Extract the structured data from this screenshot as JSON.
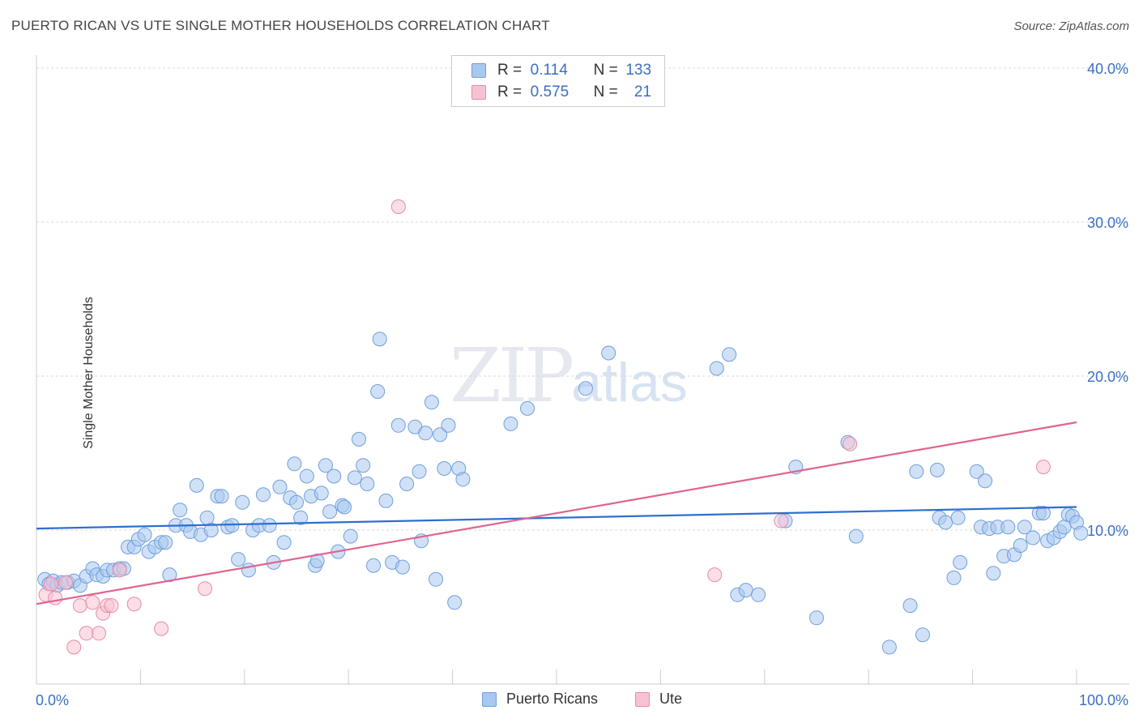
{
  "header": {
    "title": "PUERTO RICAN VS UTE SINGLE MOTHER HOUSEHOLDS CORRELATION CHART",
    "source": "Source: ZipAtlas.com"
  },
  "watermark": {
    "zip": "ZIP",
    "atlas": "atlas"
  },
  "legend": {
    "rows": [
      {
        "r_label": "R =",
        "r_value": "0.114",
        "n_label": "N =",
        "n_value": "133",
        "color": "#a9c8f0",
        "border": "#6f9fdc"
      },
      {
        "r_label": "R =",
        "r_value": "0.575",
        "n_label": "N =",
        "n_value": "21",
        "color": "#f7c3d2",
        "border": "#e98aa6"
      }
    ]
  },
  "bottom_legend": {
    "items": [
      {
        "label": "Puerto Ricans",
        "color": "#a9c8f0",
        "border": "#6f9fdc"
      },
      {
        "label": "Ute",
        "color": "#f7c3d2",
        "border": "#e98aa6"
      }
    ]
  },
  "chart_data": {
    "type": "scatter",
    "title": "PUERTO RICAN VS UTE SINGLE MOTHER HOUSEHOLDS CORRELATION CHART",
    "xlabel": "",
    "ylabel": "Single Mother Households",
    "xlim": [
      0,
      100
    ],
    "ylim": [
      0,
      42
    ],
    "x_tick_labels": [
      "0.0%",
      "100.0%"
    ],
    "y_ticks": [
      10,
      20,
      30,
      40
    ],
    "y_tick_labels": [
      "10.0%",
      "20.0%",
      "30.0%",
      "40.0%"
    ],
    "grid": true,
    "legend_position": "top-center",
    "series": [
      {
        "name": "Puerto Ricans",
        "color": "#6f9fdc",
        "fill": "#a9c8f0",
        "trend": {
          "x": [
            0,
            100
          ],
          "y": [
            10.1,
            11.5
          ]
        },
        "points": [
          [
            0.8,
            6.8
          ],
          [
            1.2,
            6.5
          ],
          [
            1.6,
            6.7
          ],
          [
            2.0,
            6.4
          ],
          [
            2.4,
            6.6
          ],
          [
            3.0,
            6.6
          ],
          [
            3.6,
            6.7
          ],
          [
            4.2,
            6.4
          ],
          [
            4.8,
            7.0
          ],
          [
            5.4,
            7.5
          ],
          [
            5.8,
            7.1
          ],
          [
            6.4,
            7.0
          ],
          [
            6.8,
            7.4
          ],
          [
            7.4,
            7.4
          ],
          [
            8.0,
            7.5
          ],
          [
            8.4,
            7.5
          ],
          [
            8.8,
            8.9
          ],
          [
            9.4,
            8.9
          ],
          [
            9.8,
            9.4
          ],
          [
            10.4,
            9.7
          ],
          [
            10.8,
            8.6
          ],
          [
            11.4,
            8.9
          ],
          [
            12.0,
            9.2
          ],
          [
            12.4,
            9.2
          ],
          [
            12.8,
            7.1
          ],
          [
            13.4,
            10.3
          ],
          [
            13.8,
            11.3
          ],
          [
            14.4,
            10.3
          ],
          [
            14.8,
            9.9
          ],
          [
            15.4,
            12.9
          ],
          [
            15.8,
            9.7
          ],
          [
            16.4,
            10.8
          ],
          [
            16.8,
            10.0
          ],
          [
            17.4,
            12.2
          ],
          [
            17.8,
            12.2
          ],
          [
            18.4,
            10.2
          ],
          [
            18.8,
            10.3
          ],
          [
            19.4,
            8.1
          ],
          [
            19.8,
            11.8
          ],
          [
            20.4,
            7.4
          ],
          [
            20.8,
            10.0
          ],
          [
            21.4,
            10.3
          ],
          [
            21.8,
            12.3
          ],
          [
            22.4,
            10.3
          ],
          [
            22.8,
            7.9
          ],
          [
            23.4,
            12.8
          ],
          [
            23.8,
            9.2
          ],
          [
            24.4,
            12.1
          ],
          [
            24.8,
            14.3
          ],
          [
            25.0,
            11.8
          ],
          [
            25.4,
            10.8
          ],
          [
            26.0,
            13.5
          ],
          [
            26.4,
            12.2
          ],
          [
            26.8,
            7.7
          ],
          [
            27.0,
            8.0
          ],
          [
            27.4,
            12.4
          ],
          [
            27.8,
            14.2
          ],
          [
            28.2,
            11.2
          ],
          [
            28.6,
            13.5
          ],
          [
            29.0,
            8.6
          ],
          [
            29.4,
            11.6
          ],
          [
            29.6,
            11.5
          ],
          [
            30.2,
            9.6
          ],
          [
            30.6,
            13.4
          ],
          [
            31.0,
            15.9
          ],
          [
            31.4,
            14.2
          ],
          [
            31.8,
            13.0
          ],
          [
            32.4,
            7.7
          ],
          [
            32.8,
            19.0
          ],
          [
            33.0,
            22.4
          ],
          [
            33.6,
            11.9
          ],
          [
            34.2,
            7.9
          ],
          [
            34.8,
            16.8
          ],
          [
            35.2,
            7.6
          ],
          [
            35.6,
            13.0
          ],
          [
            36.4,
            16.7
          ],
          [
            36.8,
            13.8
          ],
          [
            37.0,
            9.3
          ],
          [
            37.4,
            16.3
          ],
          [
            38.0,
            18.3
          ],
          [
            38.4,
            6.8
          ],
          [
            38.8,
            16.2
          ],
          [
            39.2,
            14.0
          ],
          [
            39.6,
            16.8
          ],
          [
            40.2,
            5.3
          ],
          [
            40.6,
            14.0
          ],
          [
            41.0,
            13.3
          ],
          [
            45.6,
            16.9
          ],
          [
            47.2,
            17.9
          ],
          [
            52.8,
            19.2
          ],
          [
            55.0,
            21.5
          ],
          [
            65.4,
            20.5
          ],
          [
            66.6,
            21.4
          ],
          [
            67.4,
            5.8
          ],
          [
            68.2,
            6.1
          ],
          [
            69.4,
            5.8
          ],
          [
            72.0,
            10.6
          ],
          [
            73.0,
            14.1
          ],
          [
            75.0,
            4.3
          ],
          [
            78.0,
            15.7
          ],
          [
            78.8,
            9.6
          ],
          [
            82.0,
            2.4
          ],
          [
            84.0,
            5.1
          ],
          [
            84.6,
            13.8
          ],
          [
            85.2,
            3.2
          ],
          [
            86.6,
            13.9
          ],
          [
            86.8,
            10.8
          ],
          [
            87.4,
            10.5
          ],
          [
            88.2,
            6.9
          ],
          [
            88.6,
            10.8
          ],
          [
            88.8,
            7.9
          ],
          [
            90.4,
            13.8
          ],
          [
            90.8,
            10.2
          ],
          [
            91.2,
            13.2
          ],
          [
            91.6,
            10.1
          ],
          [
            92.0,
            7.2
          ],
          [
            92.4,
            10.2
          ],
          [
            93.0,
            8.3
          ],
          [
            93.4,
            10.2
          ],
          [
            94.0,
            8.4
          ],
          [
            94.6,
            9.0
          ],
          [
            95.0,
            10.2
          ],
          [
            95.8,
            9.5
          ],
          [
            96.4,
            11.1
          ],
          [
            96.8,
            11.1
          ],
          [
            97.2,
            9.3
          ],
          [
            97.8,
            9.5
          ],
          [
            98.4,
            9.9
          ],
          [
            98.8,
            10.2
          ],
          [
            99.2,
            11.0
          ],
          [
            99.6,
            10.9
          ],
          [
            100.0,
            10.5
          ],
          [
            100.4,
            9.8
          ]
        ]
      },
      {
        "name": "Ute",
        "color": "#e98aa6",
        "fill": "#f7c3d2",
        "trend": {
          "x": [
            0,
            100
          ],
          "y": [
            5.2,
            17.0
          ]
        },
        "points": [
          [
            0.9,
            5.8
          ],
          [
            1.8,
            5.6
          ],
          [
            2.8,
            6.6
          ],
          [
            3.6,
            2.4
          ],
          [
            4.2,
            5.1
          ],
          [
            4.8,
            3.3
          ],
          [
            5.4,
            5.3
          ],
          [
            6.0,
            3.3
          ],
          [
            6.4,
            4.6
          ],
          [
            6.8,
            5.1
          ],
          [
            7.2,
            5.1
          ],
          [
            8.0,
            7.4
          ],
          [
            9.4,
            5.2
          ],
          [
            12.0,
            3.6
          ],
          [
            16.2,
            6.2
          ],
          [
            34.8,
            31.0
          ],
          [
            65.2,
            7.1
          ],
          [
            71.6,
            10.6
          ],
          [
            78.2,
            15.6
          ],
          [
            96.8,
            14.1
          ],
          [
            1.4,
            6.5
          ]
        ]
      }
    ]
  }
}
